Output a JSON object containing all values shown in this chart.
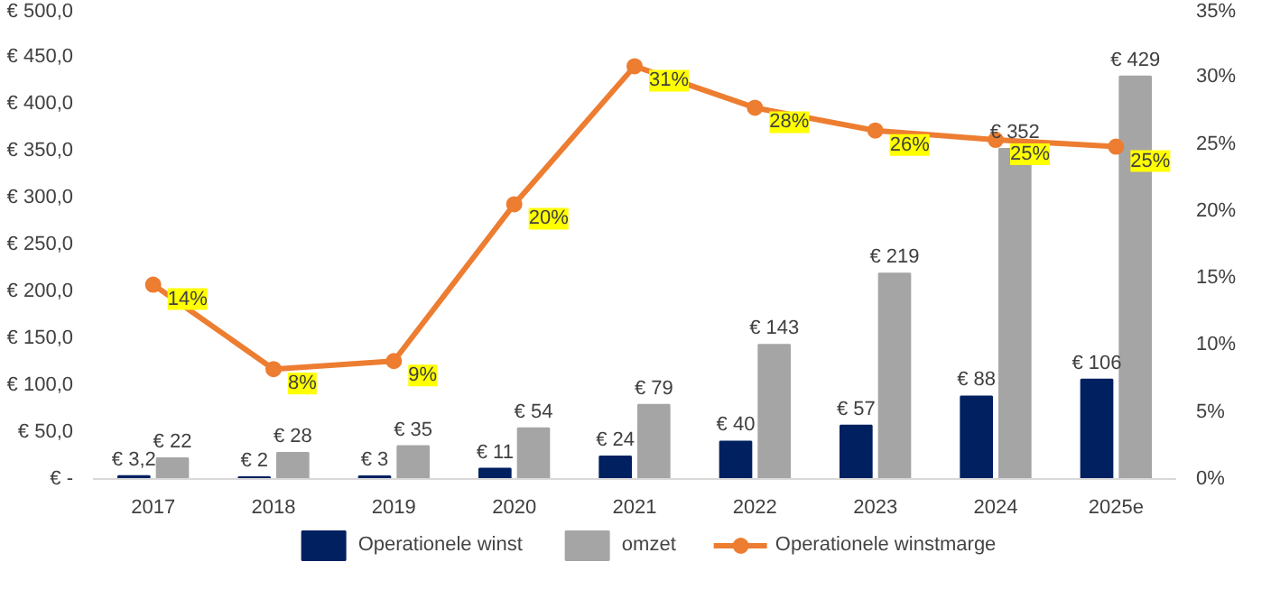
{
  "chart_data": {
    "type": "bar",
    "categories": [
      "2017",
      "2018",
      "2019",
      "2020",
      "2021",
      "2022",
      "2023",
      "2024",
      "2025e"
    ],
    "series": [
      {
        "name": "Operationele winst",
        "color": "#002060",
        "values": [
          3.2,
          2,
          3,
          11,
          24,
          40,
          57,
          88,
          106
        ],
        "value_labels": [
          "€ 3,2",
          "€ 2",
          "€ 3",
          "€ 11",
          "€ 24",
          "€ 40",
          "€ 57",
          "€ 88",
          "€ 106"
        ]
      },
      {
        "name": "omzet",
        "color": "#a5a5a5",
        "values": [
          22,
          28,
          35,
          54,
          79,
          143,
          219,
          352,
          429
        ],
        "value_labels": [
          "€ 22",
          "€ 28",
          "€ 35",
          "€ 54",
          "€ 79",
          "€ 143",
          "€ 219",
          "€ 352",
          "€ 429"
        ]
      },
      {
        "name": "Operationele winstmarge",
        "type": "line",
        "axis": "y2",
        "marker": "circle",
        "color": "#ed7d31",
        "values": [
          14.5,
          8.2,
          8.8,
          20.5,
          30.8,
          27.7,
          26,
          25.3,
          24.8
        ],
        "value_labels": [
          "14%",
          "8%",
          "9%",
          "20%",
          "31%",
          "28%",
          "26%",
          "25%",
          "25%"
        ]
      }
    ],
    "ylim": [
      0,
      500
    ],
    "yticks": [
      {
        "value": 0,
        "label": "€ -"
      },
      {
        "value": 50,
        "label": "€ 50,0"
      },
      {
        "value": 100,
        "label": "€ 100,0"
      },
      {
        "value": 150,
        "label": "€ 150,0"
      },
      {
        "value": 200,
        "label": "€ 200,0"
      },
      {
        "value": 250,
        "label": "€ 250,0"
      },
      {
        "value": 300,
        "label": "€ 300,0"
      },
      {
        "value": 350,
        "label": "€ 350,0"
      },
      {
        "value": 400,
        "label": "€ 400,0"
      },
      {
        "value": 450,
        "label": "€ 450,0"
      },
      {
        "value": 500,
        "label": "€ 500,0"
      }
    ],
    "y2lim": [
      0,
      35
    ],
    "y2ticks": [
      {
        "value": 0,
        "label": "0%"
      },
      {
        "value": 5,
        "label": "5%"
      },
      {
        "value": 10,
        "label": "10%"
      },
      {
        "value": 15,
        "label": "15%"
      },
      {
        "value": 20,
        "label": "20%"
      },
      {
        "value": 25,
        "label": "25%"
      },
      {
        "value": 30,
        "label": "30%"
      },
      {
        "value": 35,
        "label": "35%"
      }
    ],
    "grid": false,
    "legend": "bottom"
  }
}
